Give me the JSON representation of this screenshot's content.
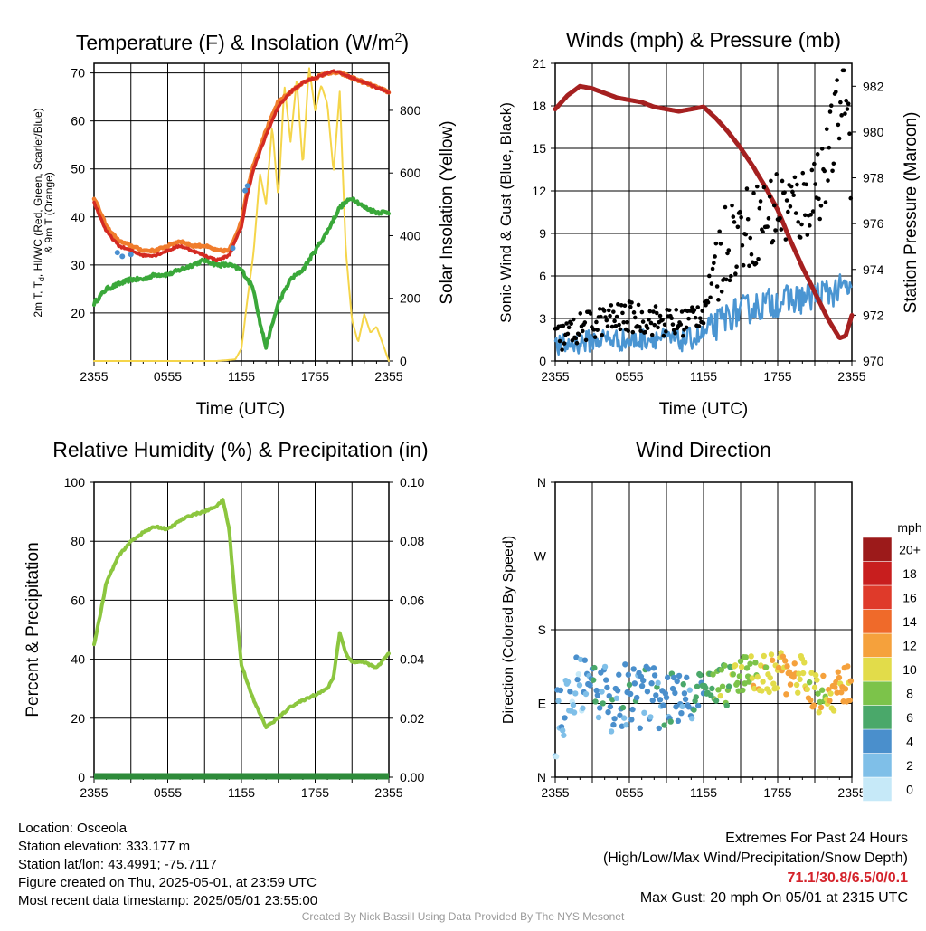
{
  "panels": {
    "temperature": {
      "title": "Temperature (F) & Insolation (W/m",
      "title_sup": "2",
      "title_end": ")",
      "ylabel_lines": [
        "2m T, T",
        "d",
        ", HI/WC (Red, Green, Scarlet/Blue)",
        "& 9m T (Orange)"
      ],
      "ylabel_right": "Solar Insolation (Yellow)",
      "xlabel": "Time (UTC)"
    },
    "winds": {
      "title": "Winds (mph) & Pressure (mb)",
      "ylabel_left": "Sonic Wind & Gust (Blue, Black)",
      "ylabel_right": "Station Pressure (Maroon)",
      "xlabel": "Time (UTC)"
    },
    "humidity": {
      "title": "Relative Humidity (%) & Precipitation (in)",
      "ylabel_left": "Percent & Precipitation"
    },
    "direction": {
      "title": "Wind Direction",
      "ylabel_left": "Direction (Colored By Speed)",
      "colorbar_title": "mph"
    }
  },
  "station": {
    "location": "Location: Osceola",
    "elevation": "Station elevation: 333.177 m",
    "latlon": "Station lat/lon: 43.4991; -75.7117",
    "created": "Figure created on Thu, 2025-05-01, at 23:59 UTC",
    "recent": "Most recent data timestamp: 2025/05/01 23:55:00"
  },
  "extremes": {
    "line1": "Extremes For Past 24 Hours",
    "line2": "(High/Low/Max Wind/Precipitation/Snow Depth)",
    "values": "71.1/30.8/6.5/0/0.1",
    "gust": "Max Gust: 20 mph On 05/01 at 2315 UTC"
  },
  "credit": "Created By Nick Bassill Using Data Provided By The NYS Mesonet",
  "colors": {
    "temp": "#d42a22",
    "heat_index": "#c4211f",
    "dewpoint": "#3aa83a",
    "temp9m": "#f07c2c",
    "windchill": "#4a8fd0",
    "solar": "#f5d54a",
    "wind": "#4a95d2",
    "gust": "#000000",
    "pressure": "#a52020",
    "rh": "#8cc63f",
    "precip": "#2e8b3a"
  },
  "chart_data": [
    {
      "type": "line",
      "title": "Temperature (F) & Insolation (W/m2)",
      "xlabel": "Time (UTC)",
      "ylabel": "2m T, Td, HI/WC (Red, Green, Scarlet/Blue) & 9m T (Orange)",
      "ylabel_right": "Solar Insolation (Yellow)",
      "x_ticks": [
        "2355",
        "0555",
        "1155",
        "1755",
        "2355"
      ],
      "x_hours": [
        0,
        3,
        6,
        9,
        12,
        15,
        18,
        21,
        24
      ],
      "ylim": [
        10,
        72
      ],
      "yticks": [
        20,
        30,
        40,
        50,
        60,
        70
      ],
      "ylim_right": [
        0,
        950
      ],
      "yticks_right": [
        0,
        200,
        400,
        600,
        800
      ],
      "series": [
        {
          "name": "2m T",
          "axis": "left",
          "x": [
            0,
            1,
            2,
            3,
            4,
            5,
            6,
            7,
            8,
            9,
            10,
            11,
            12,
            12.5,
            13,
            14,
            15,
            16,
            17,
            18,
            19,
            19.5,
            20,
            21,
            22,
            23,
            24
          ],
          "values": [
            43,
            37,
            34,
            33,
            32,
            32,
            33,
            34,
            33,
            32,
            31,
            32,
            38,
            45,
            50,
            57,
            63,
            66,
            68,
            69,
            70,
            70.5,
            70,
            69,
            68,
            67,
            66
          ]
        },
        {
          "name": "9m T",
          "axis": "left",
          "x": [
            0,
            1,
            2,
            3,
            4,
            5,
            6,
            7,
            8,
            9,
            10,
            11,
            12,
            12.5,
            13,
            14,
            15,
            16,
            17,
            18,
            19,
            20,
            21,
            22,
            23,
            24
          ],
          "values": [
            44,
            38,
            35,
            34,
            33,
            33,
            34,
            35,
            34,
            34,
            33,
            33,
            39,
            46,
            51,
            58,
            64,
            66,
            68,
            69,
            70,
            70,
            69,
            68,
            67,
            66
          ]
        },
        {
          "name": "Td",
          "axis": "left",
          "x": [
            0,
            1,
            2,
            3,
            4,
            5,
            6,
            7,
            8,
            9,
            10,
            11,
            12,
            13,
            13.5,
            14,
            15,
            16,
            17,
            18,
            19,
            20,
            21,
            22,
            23,
            24
          ],
          "values": [
            22,
            25,
            26,
            27,
            27,
            28,
            28,
            29,
            30,
            31,
            30,
            30,
            29,
            25,
            18,
            13,
            22,
            27,
            29,
            33,
            37,
            42,
            44,
            42,
            41,
            41
          ]
        },
        {
          "name": "Solar",
          "axis": "right",
          "x": [
            0,
            6,
            10,
            11.5,
            12,
            12.5,
            13,
            13.5,
            14,
            14.5,
            15,
            15.5,
            16,
            16.5,
            17,
            17.5,
            18,
            18.5,
            19,
            19.5,
            20,
            20.5,
            21,
            21.5,
            22,
            22.5,
            23,
            24
          ],
          "values": [
            0,
            0,
            0,
            5,
            40,
            200,
            350,
            600,
            500,
            750,
            520,
            880,
            700,
            900,
            620,
            940,
            800,
            880,
            820,
            600,
            860,
            350,
            130,
            60,
            150,
            90,
            110,
            0
          ]
        }
      ]
    },
    {
      "type": "line",
      "title": "Winds (mph) & Pressure (mb)",
      "xlabel": "Time (UTC)",
      "ylabel": "Sonic Wind & Gust (Blue, Black)",
      "ylabel_right": "Station Pressure (Maroon)",
      "x_ticks": [
        "2355",
        "0555",
        "1155",
        "1755",
        "2355"
      ],
      "ylim": [
        0,
        21
      ],
      "yticks": [
        0,
        3,
        6,
        9,
        12,
        15,
        18,
        21
      ],
      "ylim_right": [
        970,
        983
      ],
      "yticks_right": [
        970,
        972,
        974,
        976,
        978,
        980,
        982
      ],
      "series": [
        {
          "name": "Pressure",
          "axis": "right",
          "x": [
            0,
            1,
            2,
            3,
            4,
            5,
            6,
            7,
            8,
            9,
            10,
            11,
            12,
            13,
            14,
            15,
            16,
            17,
            18,
            19,
            20,
            21,
            22,
            23,
            23.5,
            24
          ],
          "values": [
            981.0,
            981.6,
            982.0,
            981.9,
            981.7,
            981.5,
            981.4,
            981.3,
            981.1,
            981.0,
            980.9,
            981.0,
            981.1,
            980.6,
            980.0,
            979.3,
            978.5,
            977.6,
            976.6,
            975.3,
            974.1,
            973.0,
            971.9,
            971.0,
            971.1,
            972.0
          ]
        },
        {
          "name": "Wind",
          "axis": "left",
          "x": [
            0,
            2,
            4,
            6,
            8,
            10,
            12,
            14,
            16,
            18,
            20,
            22,
            24
          ],
          "values": [
            1.0,
            1.3,
            1.6,
            1.4,
            1.7,
            1.4,
            1.8,
            3.2,
            3.8,
            4.2,
            4.4,
            4.8,
            5.2
          ]
        },
        {
          "name": "Gust",
          "axis": "left",
          "x": [
            0,
            2,
            4,
            6,
            8,
            10,
            12,
            13,
            14,
            16,
            18,
            20,
            22,
            23.5,
            24
          ],
          "values": [
            1.5,
            2.3,
            2.9,
            3.1,
            2.9,
            2.6,
            3.6,
            6.5,
            8.6,
            9.6,
            10.8,
            10.9,
            13.8,
            20.0,
            13.0
          ]
        }
      ]
    },
    {
      "type": "line",
      "title": "Relative Humidity (%) & Precipitation (in)",
      "ylabel": "Percent & Precipitation",
      "x_ticks": [
        "2355",
        "0555",
        "1155",
        "1755",
        "2355"
      ],
      "ylim": [
        0,
        100
      ],
      "yticks": [
        0,
        20,
        40,
        60,
        80,
        100
      ],
      "ylim_right": [
        0,
        0.1
      ],
      "yticks_right": [
        "0.00",
        "0.02",
        "0.04",
        "0.06",
        "0.08",
        "0.10"
      ],
      "series": [
        {
          "name": "RH",
          "axis": "left",
          "x": [
            0,
            0.5,
            1,
            2,
            3,
            4,
            5,
            6,
            7,
            8,
            9,
            10,
            10.5,
            11,
            11.5,
            12,
            13,
            14,
            15,
            16,
            17,
            18,
            19,
            19.5,
            20,
            20.5,
            21,
            22,
            23,
            24
          ],
          "values": [
            45,
            55,
            66,
            75,
            80,
            83,
            85,
            84,
            87,
            89,
            90,
            92,
            94,
            84,
            60,
            38,
            26,
            17,
            20,
            24,
            26,
            28,
            30,
            34,
            49,
            42,
            39,
            39,
            37,
            42
          ]
        },
        {
          "name": "Precipitation",
          "axis": "right",
          "x": [
            0,
            24
          ],
          "values": [
            0,
            0
          ]
        }
      ]
    },
    {
      "type": "scatter",
      "title": "Wind Direction",
      "ylabel": "Direction (Colored By Speed)",
      "x_ticks": [
        "2355",
        "0555",
        "1155",
        "1755",
        "2355"
      ],
      "y_categories": [
        "N",
        "E",
        "S",
        "W",
        "N"
      ],
      "colorbar": {
        "title": "mph",
        "labels": [
          "0",
          "2",
          "4",
          "6",
          "8",
          "10",
          "12",
          "14",
          "16",
          "18",
          "20+"
        ],
        "colors": [
          "#c6e9f8",
          "#7fbfe8",
          "#4a8fcc",
          "#4aa86a",
          "#7cc34a",
          "#e2dc4a",
          "#f5a13c",
          "#ef6a2a",
          "#df3a2a",
          "#c81e1e",
          "#9c1a1a"
        ]
      },
      "series": [
        {
          "name": "Direction",
          "x": [
            0,
            1,
            2,
            3,
            4,
            5,
            6,
            7,
            8,
            9,
            10,
            11,
            12,
            13,
            14,
            15,
            16,
            17,
            18,
            19,
            20,
            21,
            22,
            23,
            24
          ],
          "values": [
            60,
            100,
            110,
            95,
            100,
            90,
            105,
            95,
            100,
            95,
            100,
            95,
            105,
            115,
            110,
            125,
            130,
            125,
            130,
            120,
            125,
            105,
            100,
            110,
            115
          ],
          "speed": [
            1,
            1,
            1,
            2,
            2,
            2,
            2,
            2,
            2,
            2,
            2,
            2,
            3,
            4,
            4,
            4,
            5,
            5,
            5,
            6,
            5,
            5,
            5,
            6,
            6
          ]
        }
      ]
    }
  ]
}
